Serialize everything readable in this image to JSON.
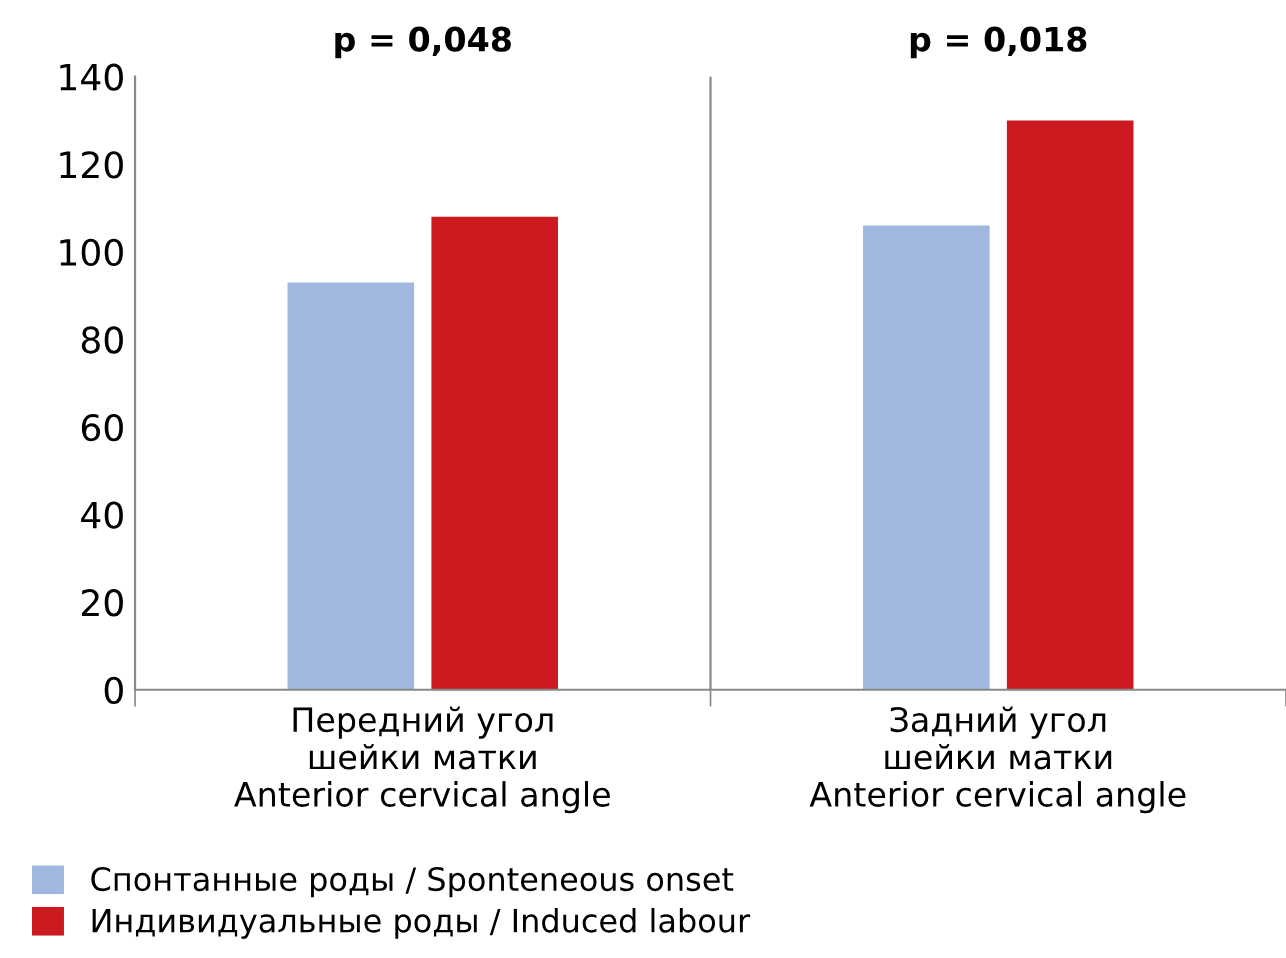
{
  "chart_data": {
    "type": "bar",
    "categories": [
      "Передний угол\nшейки матки\nAnterior cervical angle",
      "Задний угол\nшейки матки\nAnterior cervical angle"
    ],
    "series": [
      {
        "name": "Спонтанные роды / Sponteneous onset",
        "color": "#a0b8e0",
        "values": [
          93,
          106
        ]
      },
      {
        "name": "Индивидуальные роды / Induced labour",
        "color": "#cc1a20",
        "values": [
          108,
          130
        ]
      }
    ],
    "annotations": [
      "p = 0,048",
      "p = 0,018"
    ],
    "ylim": [
      0,
      140
    ],
    "yticks": [
      0,
      20,
      40,
      60,
      80,
      100,
      120,
      140
    ],
    "grid": false,
    "legend": "bottom left"
  }
}
